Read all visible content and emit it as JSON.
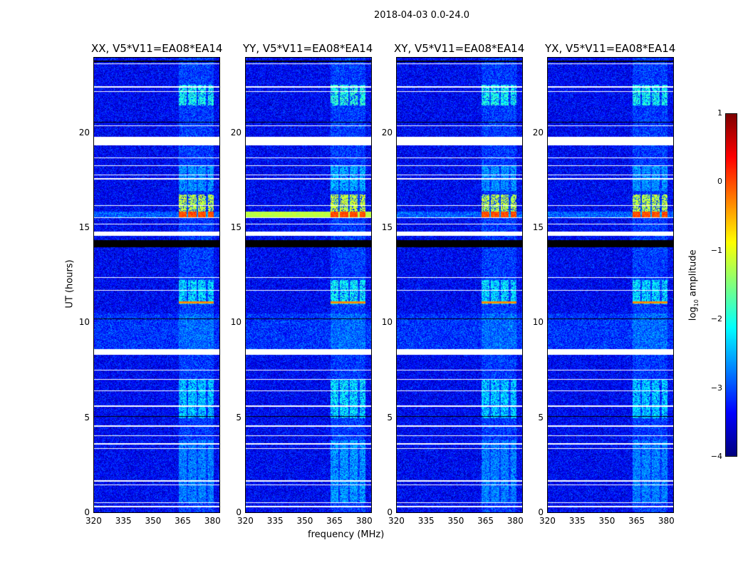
{
  "chart_data": {
    "type": "heatmap",
    "suptitle": "2018-04-03 0.0-24.0",
    "xlabel": "frequency (MHz)",
    "ylabel": "UT (hours)",
    "xlim": [
      320,
      384
    ],
    "ylim": [
      0,
      24
    ],
    "xticks": [
      "320",
      "335",
      "350",
      "365",
      "380"
    ],
    "xtick_values": [
      320,
      335,
      350,
      365,
      380
    ],
    "yticks": [
      "0",
      "5",
      "10",
      "15",
      "20"
    ],
    "ytick_values": [
      0,
      5,
      10,
      15,
      20
    ],
    "colormap": "jet",
    "colorbar": {
      "label": "log10 amplitude",
      "label_main": "log",
      "label_sub": "10",
      "label_rest": " amplitude",
      "range": [
        -4,
        1
      ],
      "ticks": [
        "1",
        "0",
        "−1",
        "−2",
        "−3",
        "−4"
      ],
      "tick_values": [
        1,
        0,
        -1,
        -2,
        -3,
        -4
      ]
    },
    "background_level": -3.4,
    "rfi_band_mhz": [
      363,
      381
    ],
    "rfi_columns_mhz": [
      [
        363,
        367
      ],
      [
        368,
        372
      ],
      [
        373,
        377
      ],
      [
        378,
        381
      ]
    ],
    "rfi_episodes": [
      {
        "hours": [
          15.6,
          16.8
        ],
        "level": -1.2
      },
      {
        "hours": [
          21.5,
          22.6
        ],
        "level": -2.0
      },
      {
        "hours": [
          11.0,
          12.3
        ],
        "level": -2.2
      },
      {
        "hours": [
          5.0,
          7.0
        ],
        "level": -2.3
      },
      {
        "hours": [
          0.5,
          3.8
        ],
        "level": -2.7
      },
      {
        "hours": [
          17.0,
          18.3
        ],
        "level": -2.6
      }
    ],
    "strong_line": {
      "hours": [
        15.6,
        15.9
      ],
      "level": 0.0
    },
    "flagged_white_hours": [
      [
        23.68,
        23.72
      ],
      [
        22.45,
        22.5
      ],
      [
        22.2,
        22.25
      ],
      [
        20.4,
        20.45
      ],
      [
        19.4,
        19.85
      ],
      [
        18.7,
        18.75
      ],
      [
        18.3,
        18.35
      ],
      [
        17.8,
        17.85
      ],
      [
        17.6,
        17.65
      ],
      [
        16.2,
        16.25
      ],
      [
        15.55,
        15.6
      ],
      [
        15.2,
        15.25
      ],
      [
        14.6,
        14.85
      ],
      [
        12.4,
        12.45
      ],
      [
        11.7,
        11.75
      ],
      [
        8.35,
        8.65
      ],
      [
        7.5,
        7.55
      ],
      [
        7.0,
        7.05
      ],
      [
        6.4,
        6.45
      ],
      [
        5.6,
        5.65
      ],
      [
        4.55,
        4.6
      ],
      [
        4.05,
        4.1
      ],
      [
        3.6,
        3.65
      ],
      [
        3.35,
        3.4
      ],
      [
        1.65,
        1.7
      ],
      [
        1.45,
        1.5
      ],
      [
        0.5,
        0.55
      ],
      [
        0.3,
        0.35
      ]
    ],
    "flagged_black_hours": [
      [
        14.0,
        14.4
      ],
      [
        23.8,
        23.85
      ],
      [
        20.6,
        20.65
      ],
      [
        10.2,
        10.25
      ],
      [
        5.05,
        5.1
      ],
      [
        2.0,
        2.03
      ]
    ],
    "panels": [
      {
        "title": "XX, V5*V11=EA08*EA14",
        "strength": 1.0
      },
      {
        "title": "YY, V5*V11=EA08*EA14",
        "strength": 1.3
      },
      {
        "title": "XY, V5*V11=EA08*EA14",
        "strength": 0.95
      },
      {
        "title": "YX, V5*V11=EA08*EA14",
        "strength": 0.95
      }
    ]
  }
}
